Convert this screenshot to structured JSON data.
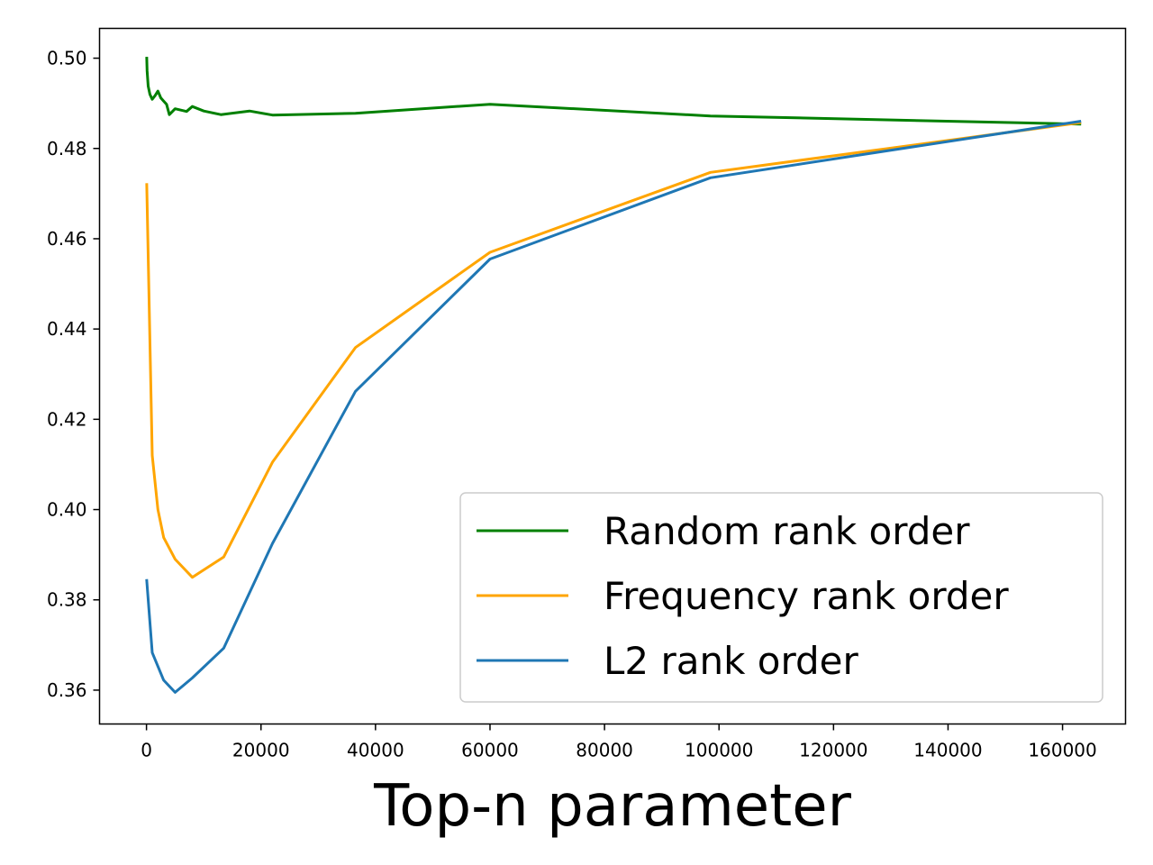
{
  "chart_data": {
    "type": "line",
    "title": "",
    "xlabel": "Top-n parameter",
    "ylabel": "",
    "xlim": [
      -8200,
      171000
    ],
    "ylim": [
      0.3525,
      0.5066
    ],
    "xticks": [
      0,
      20000,
      40000,
      60000,
      80000,
      100000,
      120000,
      140000,
      160000
    ],
    "xtick_labels": [
      "0",
      "20000",
      "40000",
      "60000",
      "80000",
      "100000",
      "120000",
      "140000",
      "160000"
    ],
    "yticks": [
      0.36,
      0.38,
      0.4,
      0.42,
      0.44,
      0.46,
      0.48,
      0.5
    ],
    "ytick_labels": [
      "0.36",
      "0.38",
      "0.40",
      "0.42",
      "0.44",
      "0.46",
      "0.48",
      "0.50"
    ],
    "grid": false,
    "legend_position": "lower-right",
    "series": [
      {
        "name": "Random rank order",
        "color": "#008000",
        "x": [
          50,
          100,
          300,
          600,
          1000,
          1500,
          2000,
          2500,
          3000,
          3500,
          4000,
          5000,
          6000,
          7000,
          8000,
          10000,
          13000,
          18000,
          22000,
          36500,
          60000,
          98500,
          163000
        ],
        "y": [
          0.5,
          0.4972,
          0.4938,
          0.492,
          0.4909,
          0.4917,
          0.4927,
          0.4912,
          0.4905,
          0.4898,
          0.4875,
          0.4888,
          0.4885,
          0.4882,
          0.4893,
          0.4883,
          0.4875,
          0.4883,
          0.4874,
          0.4878,
          0.4898,
          0.4872,
          0.4854
        ]
      },
      {
        "name": "Frequency rank order",
        "color": "#FFA500",
        "x": [
          50,
          1000,
          2000,
          3000,
          5000,
          8000,
          13500,
          22000,
          36500,
          60000,
          98500,
          163000
        ],
        "y": [
          0.472,
          0.412,
          0.4,
          0.3938,
          0.389,
          0.385,
          0.3895,
          0.4105,
          0.4359,
          0.457,
          0.4747,
          0.4857
        ]
      },
      {
        "name": "L2 rank order",
        "color": "#1F77B4",
        "x": [
          50,
          1000,
          3000,
          5000,
          8000,
          13500,
          22000,
          36500,
          60000,
          98500,
          163000
        ],
        "y": [
          0.3843,
          0.3683,
          0.3622,
          0.3595,
          0.3627,
          0.3693,
          0.3925,
          0.4262,
          0.4555,
          0.4735,
          0.486
        ]
      }
    ]
  }
}
